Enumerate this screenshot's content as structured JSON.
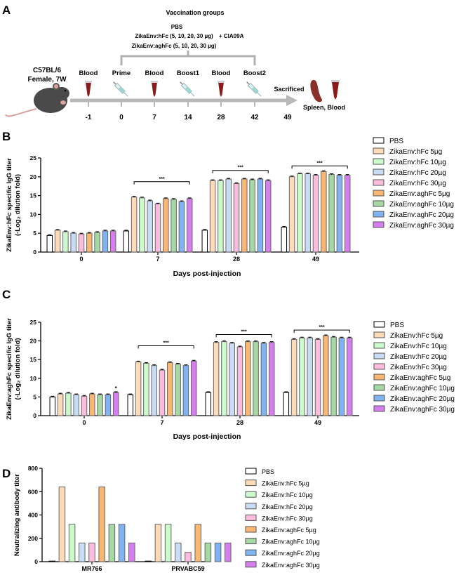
{
  "panel_labels": [
    "A",
    "B",
    "C",
    "D"
  ],
  "colors": {
    "PBS": "#ffffff",
    "ZikaEnv:hFc 5µg": "#fddbb8",
    "ZikaEnv:hFc 10µg": "#ccfbcb",
    "ZikaEnv:hFc 20µg": "#c9dcf5",
    "ZikaEnv:hFc 30µg": "#fbbcdd",
    "ZikaEnv:aghFc 5µg": "#fab771",
    "ZikaEnv:aghFc 10µg": "#a6d8a4",
    "ZikaEnv:aghFc 20µg": "#7fb3f2",
    "ZikaEnv:aghFc 30µg": "#d67ef0"
  },
  "schedule": {
    "title": "Vaccination groups",
    "groups": [
      "PBS",
      "ZikaEnv:hFc (5, 10, 20, 30 µg)",
      "ZikaEnv:aghFc (5, 10, 20, 30 µg)"
    ],
    "adjuvant": "+  CIA09A",
    "animal": [
      "C57BL/6",
      "Female, 7W"
    ],
    "events": [
      {
        "label": "Blood",
        "day": "-1",
        "icon": "blood-tube-icon"
      },
      {
        "label": "Prime",
        "day": "0",
        "icon": "syringe-icon"
      },
      {
        "label": "Blood",
        "day": "7",
        "icon": "blood-tube-icon"
      },
      {
        "label": "Boost1",
        "day": "14",
        "icon": "syringe-icon"
      },
      {
        "label": "Blood",
        "day": "28",
        "icon": "blood-tube-icon"
      },
      {
        "label": "Boost2",
        "day": "42",
        "icon": "syringe-icon"
      },
      {
        "label": "Sacrificed",
        "day": "49",
        "icon": "spleen-icon"
      }
    ],
    "end_label": "Spleen, Blood"
  },
  "chart_data": [
    {
      "type": "bar",
      "panel": "B",
      "ylabel": [
        "ZikaEnv:hFc specific IgG titer",
        "(-Log₂ dilution fold)"
      ],
      "xlabel": "Days post-injection",
      "ylim": [
        0,
        25
      ],
      "yticks": [
        0,
        5,
        10,
        15,
        20,
        25
      ],
      "categories": [
        "0",
        "7",
        "28",
        "49"
      ],
      "error_bar_sem": 0.2,
      "significance": [
        "",
        "***",
        "***",
        "***"
      ],
      "bar_marks": [],
      "series": [
        {
          "name": "PBS",
          "values": [
            4.4,
            5.6,
            5.8,
            6.6
          ]
        },
        {
          "name": "ZikaEnv:hFc 5µg",
          "values": [
            5.8,
            14.6,
            19.0,
            20.0
          ]
        },
        {
          "name": "ZikaEnv:hFc 10µg",
          "values": [
            5.4,
            14.4,
            19.0,
            20.8
          ]
        },
        {
          "name": "ZikaEnv:hFc 20µg",
          "values": [
            5.0,
            13.6,
            19.4,
            20.8
          ]
        },
        {
          "name": "ZikaEnv:hFc 30µg",
          "values": [
            4.8,
            12.8,
            18.2,
            20.4
          ]
        },
        {
          "name": "ZikaEnv:aghFc 5µg",
          "values": [
            5.0,
            14.2,
            19.4,
            21.4
          ]
        },
        {
          "name": "ZikaEnv:aghFc 10µg",
          "values": [
            5.2,
            14.0,
            19.2,
            20.6
          ]
        },
        {
          "name": "ZikaEnv:aghFc 20µg",
          "values": [
            5.6,
            13.4,
            19.4,
            20.4
          ]
        },
        {
          "name": "ZikaEnv:aghFc 30µg",
          "values": [
            5.6,
            14.2,
            19.0,
            20.4
          ]
        }
      ],
      "legend_position": "right"
    },
    {
      "type": "bar",
      "panel": "C",
      "ylabel": [
        "ZikaEnv:aghFc specific IgG titer",
        "(-Log₂ dilution fold)"
      ],
      "xlabel": "Days post-injection",
      "ylim": [
        0,
        25
      ],
      "yticks": [
        0,
        5,
        10,
        15,
        20,
        25
      ],
      "categories": [
        "0",
        "7",
        "28",
        "49"
      ],
      "error_bar_sem": 0.2,
      "significance": [
        "",
        "***",
        "***",
        "***"
      ],
      "bar_marks": [
        {
          "category": "0",
          "series": "ZikaEnv:aghFc 30µg",
          "text": "*"
        }
      ],
      "series": [
        {
          "name": "PBS",
          "values": [
            5.0,
            5.6,
            6.2,
            6.2
          ]
        },
        {
          "name": "ZikaEnv:hFc 5µg",
          "values": [
            5.8,
            14.4,
            19.6,
            20.4
          ]
        },
        {
          "name": "ZikaEnv:hFc 10µg",
          "values": [
            6.0,
            14.0,
            19.8,
            20.8
          ]
        },
        {
          "name": "ZikaEnv:hFc 20µg",
          "values": [
            5.6,
            13.4,
            19.4,
            20.8
          ]
        },
        {
          "name": "ZikaEnv:hFc 30µg",
          "values": [
            5.2,
            12.2,
            18.4,
            20.4
          ]
        },
        {
          "name": "ZikaEnv:aghFc 5µg",
          "values": [
            5.8,
            14.2,
            19.8,
            21.4
          ]
        },
        {
          "name": "ZikaEnv:aghFc 10µg",
          "values": [
            5.6,
            13.8,
            19.8,
            21.0
          ]
        },
        {
          "name": "ZikaEnv:aghFc 20µg",
          "values": [
            5.6,
            13.4,
            19.4,
            20.8
          ]
        },
        {
          "name": "ZikaEnv:aghFc 30µg",
          "values": [
            6.2,
            14.6,
            19.6,
            20.8
          ]
        }
      ],
      "legend_position": "right"
    },
    {
      "type": "bar",
      "panel": "D",
      "ylabel": [
        "Neutralizing antibody titer"
      ],
      "xlabel": "",
      "ylim": [
        0,
        800
      ],
      "yticks": [
        0,
        200,
        400,
        600,
        800
      ],
      "categories": [
        "MR766",
        "PRVABC59"
      ],
      "error_bar_sem": 0,
      "significance": [
        "",
        ""
      ],
      "bar_marks": [],
      "series": [
        {
          "name": "PBS",
          "values": [
            5,
            5
          ]
        },
        {
          "name": "ZikaEnv:hFc 5µg",
          "values": [
            640,
            320
          ]
        },
        {
          "name": "ZikaEnv:hFc 10µg",
          "values": [
            320,
            320
          ]
        },
        {
          "name": "ZikaEnv:hFc 20µg",
          "values": [
            160,
            160
          ]
        },
        {
          "name": "ZikaEnv:hFc 30µg",
          "values": [
            160,
            80
          ]
        },
        {
          "name": "ZikaEnv:aghFc 5µg",
          "values": [
            640,
            320
          ]
        },
        {
          "name": "ZikaEnv:aghFc 10µg",
          "values": [
            320,
            160
          ]
        },
        {
          "name": "ZikaEnv:aghFc 20µg",
          "values": [
            320,
            160
          ]
        },
        {
          "name": "ZikaEnv:aghFc 30µg",
          "values": [
            160,
            160
          ]
        }
      ],
      "legend_position": "right"
    }
  ]
}
